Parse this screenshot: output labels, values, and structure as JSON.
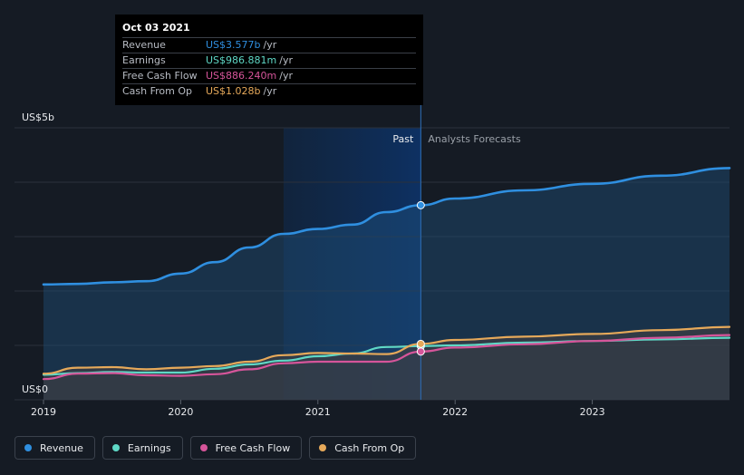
{
  "chart_data": {
    "type": "area",
    "y_unit_label": "US$5b",
    "y_zero_label": "US$0",
    "ylim": [
      0,
      5
    ],
    "xlim": [
      2019,
      2024
    ],
    "x_ticks": [
      2019,
      2020,
      2021,
      2022,
      2023
    ],
    "x_tick_labels": [
      "2019",
      "2020",
      "2021",
      "2022",
      "2023"
    ],
    "past_label": "Past",
    "forecast_label": "Analysts Forecasts",
    "divider_x": 2021.75,
    "highlight_start_x": 2020.75,
    "series": [
      {
        "name": "Revenue",
        "color": "#2f8fe0",
        "points": [
          [
            2019.0,
            2.12
          ],
          [
            2019.25,
            2.13
          ],
          [
            2019.5,
            2.16
          ],
          [
            2019.75,
            2.18
          ],
          [
            2020.0,
            2.32
          ],
          [
            2020.25,
            2.53
          ],
          [
            2020.5,
            2.8
          ],
          [
            2020.75,
            3.05
          ],
          [
            2021.0,
            3.14
          ],
          [
            2021.25,
            3.22
          ],
          [
            2021.5,
            3.45
          ],
          [
            2021.75,
            3.577
          ],
          [
            2022.0,
            3.7
          ],
          [
            2022.5,
            3.85
          ],
          [
            2023.0,
            3.97
          ],
          [
            2023.5,
            4.12
          ],
          [
            2024.0,
            4.26
          ]
        ]
      },
      {
        "name": "Earnings",
        "color": "#5fd8c6",
        "points": [
          [
            2019.0,
            0.46
          ],
          [
            2019.25,
            0.49
          ],
          [
            2019.5,
            0.51
          ],
          [
            2019.75,
            0.5
          ],
          [
            2020.0,
            0.5
          ],
          [
            2020.25,
            0.57
          ],
          [
            2020.5,
            0.65
          ],
          [
            2020.75,
            0.72
          ],
          [
            2021.0,
            0.8
          ],
          [
            2021.25,
            0.85
          ],
          [
            2021.5,
            0.97
          ],
          [
            2021.75,
            0.987
          ],
          [
            2022.0,
            1.0
          ],
          [
            2022.5,
            1.05
          ],
          [
            2023.0,
            1.08
          ],
          [
            2023.5,
            1.11
          ],
          [
            2024.0,
            1.14
          ]
        ]
      },
      {
        "name": "Free Cash Flow",
        "color": "#d6559a",
        "points": [
          [
            2019.0,
            0.38
          ],
          [
            2019.25,
            0.48
          ],
          [
            2019.5,
            0.49
          ],
          [
            2019.75,
            0.45
          ],
          [
            2020.0,
            0.44
          ],
          [
            2020.25,
            0.47
          ],
          [
            2020.5,
            0.56
          ],
          [
            2020.75,
            0.67
          ],
          [
            2021.0,
            0.7
          ],
          [
            2021.25,
            0.7
          ],
          [
            2021.5,
            0.7
          ],
          [
            2021.75,
            0.886
          ],
          [
            2022.0,
            0.96
          ],
          [
            2022.5,
            1.02
          ],
          [
            2023.0,
            1.08
          ],
          [
            2023.5,
            1.14
          ],
          [
            2024.0,
            1.19
          ]
        ]
      },
      {
        "name": "Cash From Op",
        "color": "#e6a95a",
        "points": [
          [
            2019.0,
            0.48
          ],
          [
            2019.25,
            0.59
          ],
          [
            2019.5,
            0.6
          ],
          [
            2019.75,
            0.56
          ],
          [
            2020.0,
            0.59
          ],
          [
            2020.25,
            0.62
          ],
          [
            2020.5,
            0.7
          ],
          [
            2020.75,
            0.82
          ],
          [
            2021.0,
            0.86
          ],
          [
            2021.25,
            0.85
          ],
          [
            2021.5,
            0.84
          ],
          [
            2021.75,
            1.028
          ],
          [
            2022.0,
            1.1
          ],
          [
            2022.5,
            1.16
          ],
          [
            2023.0,
            1.21
          ],
          [
            2023.5,
            1.28
          ],
          [
            2024.0,
            1.34
          ]
        ]
      }
    ],
    "hover_x": 2021.75
  },
  "tooltip": {
    "date": "Oct 03 2021",
    "rows": [
      {
        "label": "Revenue",
        "value": "US$3.577b",
        "unit": "/yr",
        "color": "#2f8fe0"
      },
      {
        "label": "Earnings",
        "value": "US$986.881m",
        "unit": "/yr",
        "color": "#5fd8c6"
      },
      {
        "label": "Free Cash Flow",
        "value": "US$886.240m",
        "unit": "/yr",
        "color": "#d6559a"
      },
      {
        "label": "Cash From Op",
        "value": "US$1.028b",
        "unit": "/yr",
        "color": "#e6a95a"
      }
    ]
  },
  "legend": [
    {
      "label": "Revenue",
      "color": "#2f8fe0"
    },
    {
      "label": "Earnings",
      "color": "#5fd8c6"
    },
    {
      "label": "Free Cash Flow",
      "color": "#d6559a"
    },
    {
      "label": "Cash From Op",
      "color": "#e6a95a"
    }
  ]
}
